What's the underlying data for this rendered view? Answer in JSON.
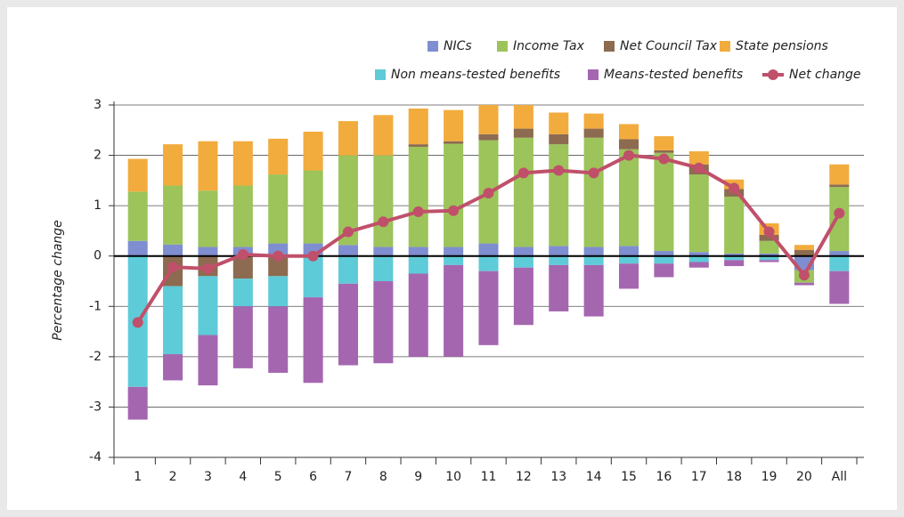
{
  "chart_data": {
    "type": "bar",
    "y_label": "Percentage change",
    "categories": [
      "1",
      "2",
      "3",
      "4",
      "5",
      "6",
      "7",
      "8",
      "9",
      "10",
      "11",
      "12",
      "13",
      "14",
      "15",
      "16",
      "17",
      "18",
      "19",
      "20",
      "All"
    ],
    "ylim": [
      -4,
      3
    ],
    "yticks": [
      3,
      2,
      1,
      0,
      -1,
      -2,
      -3,
      -4
    ],
    "grid": true,
    "series": [
      {
        "name": "NICs",
        "color": "#7f8ed0",
        "values": [
          0.3,
          0.23,
          0.18,
          0.18,
          0.25,
          0.25,
          0.22,
          0.18,
          0.18,
          0.18,
          0.25,
          0.18,
          0.2,
          0.18,
          0.2,
          0.1,
          0.08,
          0.05,
          0.05,
          -0.28,
          0.1
        ]
      },
      {
        "name": "Income Tax",
        "color": "#9cc45a",
        "values": [
          0.98,
          1.17,
          1.12,
          1.22,
          1.37,
          1.45,
          1.78,
          1.82,
          1.99,
          2.05,
          2.05,
          2.17,
          2.02,
          2.17,
          1.92,
          1.95,
          1.54,
          1.13,
          0.25,
          -0.25,
          1.27
        ]
      },
      {
        "name": "Net Council Tax",
        "color": "#8c6b50",
        "values": [
          0,
          -0.6,
          -0.4,
          -0.45,
          -0.4,
          0,
          0,
          0,
          0.05,
          0.05,
          0.12,
          0.18,
          0.2,
          0.18,
          0.2,
          0.05,
          0.2,
          0.15,
          0.12,
          0.12,
          0.05
        ]
      },
      {
        "name": "State pensions",
        "color": "#f2ab3d",
        "values": [
          0.65,
          0.82,
          0.98,
          0.88,
          0.71,
          0.77,
          0.68,
          0.8,
          0.71,
          0.62,
          0.58,
          0.47,
          0.43,
          0.3,
          0.3,
          0.28,
          0.26,
          0.19,
          0.23,
          0.1,
          0.4
        ]
      },
      {
        "name": "Non means-tested benefits",
        "color": "#5ecbd8",
        "values": [
          -2.6,
          -1.35,
          -1.17,
          -0.55,
          -0.6,
          -0.82,
          -0.55,
          -0.5,
          -0.35,
          -0.18,
          -0.3,
          -0.23,
          -0.18,
          -0.18,
          -0.15,
          -0.15,
          -0.12,
          -0.08,
          -0.08,
          0,
          -0.3
        ]
      },
      {
        "name": "Means-tested benefits",
        "color": "#a566b0",
        "values": [
          -0.65,
          -0.52,
          -1.0,
          -1.23,
          -1.32,
          -1.7,
          -1.62,
          -1.63,
          -1.65,
          -1.82,
          -1.47,
          -1.14,
          -0.92,
          -1.02,
          -0.5,
          -0.27,
          -0.11,
          -0.12,
          -0.04,
          -0.05,
          -0.65
        ]
      },
      {
        "name": "Net change",
        "type": "line",
        "color": "#c0506a",
        "values": [
          -1.32,
          -0.22,
          -0.25,
          0.03,
          0.0,
          0.0,
          0.48,
          0.68,
          0.88,
          0.9,
          1.25,
          1.65,
          1.7,
          1.65,
          2.0,
          1.93,
          1.75,
          1.35,
          0.48,
          -0.38,
          0.85
        ]
      }
    ]
  }
}
